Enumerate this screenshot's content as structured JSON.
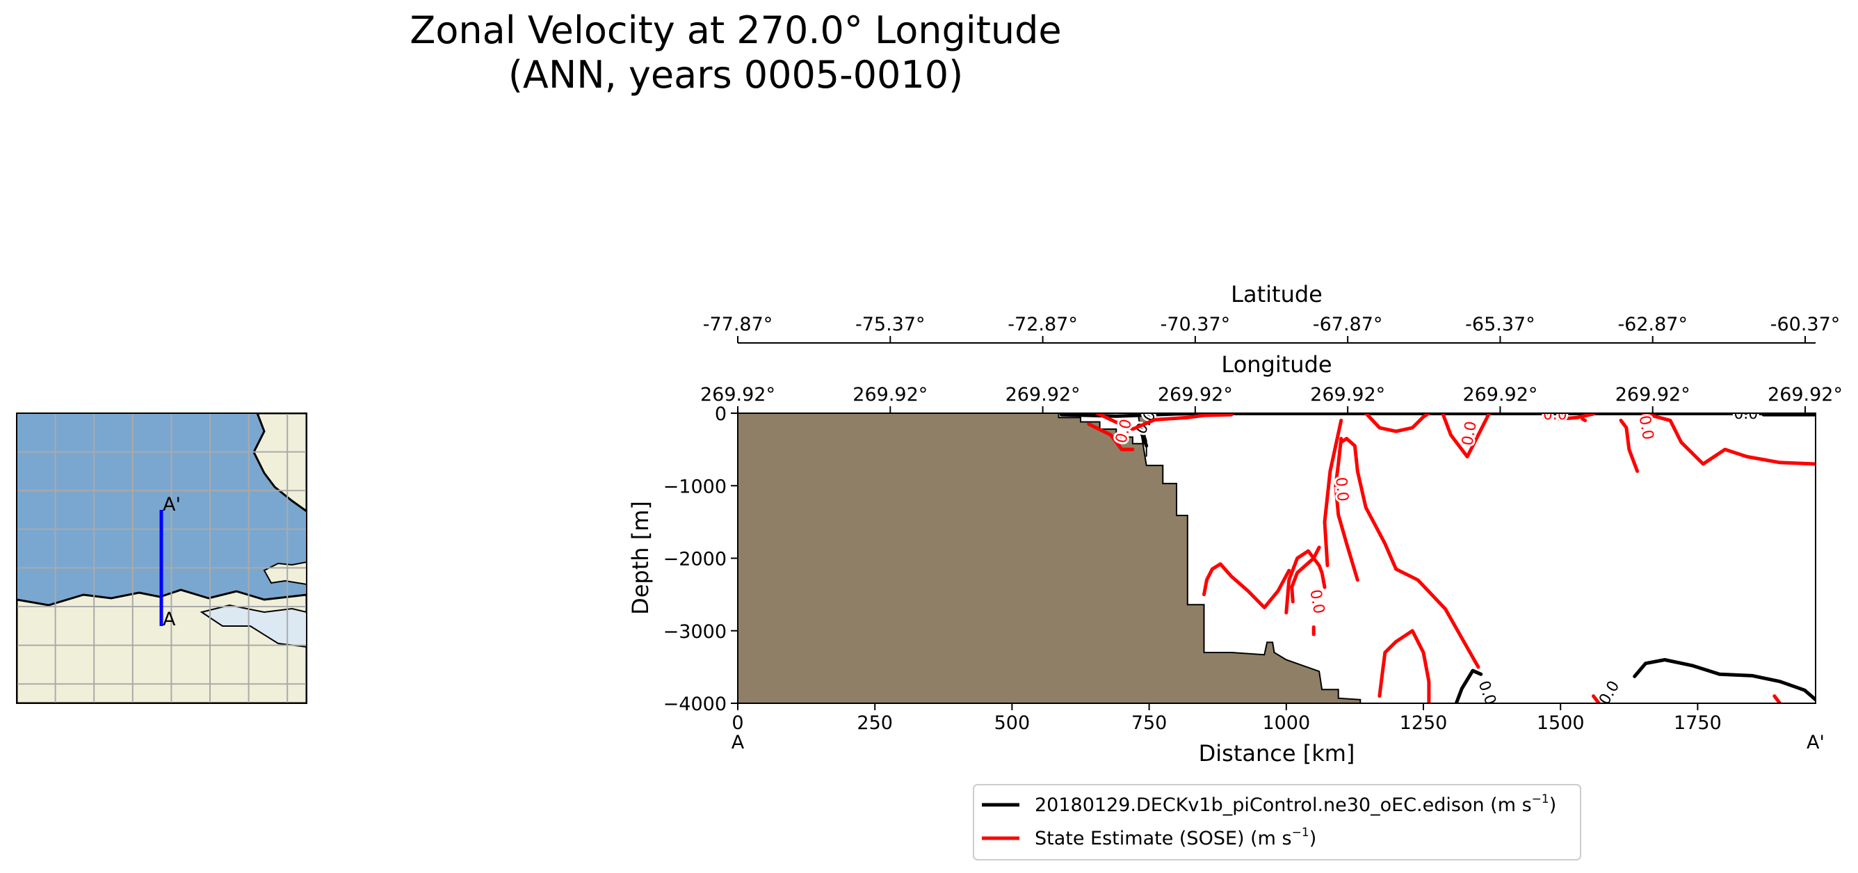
{
  "title": {
    "line1": "Zonal Velocity at 270.0° Longitude",
    "line2": "(ANN, years 0005-0010)"
  },
  "inset_map": {
    "start_label": "A",
    "end_label": "A'"
  },
  "chart_data": {
    "type": "line",
    "title": "Zonal Velocity at 270.0° Longitude (ANN, years 0005-0010)",
    "xlabel": "Distance [km]",
    "ylabel": "Depth [m]",
    "xlim": [
      0,
      1965
    ],
    "ylim": [
      -4000,
      0
    ],
    "xticks": [
      0,
      250,
      500,
      750,
      1000,
      1250,
      1500,
      1750
    ],
    "xtick_labels": [
      "0",
      "250",
      "500",
      "750",
      "1000",
      "1250",
      "1500",
      "1750"
    ],
    "yticks": [
      0,
      -1000,
      -2000,
      -3000,
      -4000
    ],
    "ytick_labels": [
      "0",
      "−1000",
      "−2000",
      "−3000",
      "−4000"
    ],
    "section_start_label": "A",
    "section_end_label": "A'",
    "latitude_axis": {
      "label": "Latitude",
      "ticks_km": [
        0,
        278,
        556,
        834,
        1112,
        1390,
        1668,
        1946
      ],
      "tick_labels": [
        "-77.87°",
        "-75.37°",
        "-72.87°",
        "-70.37°",
        "-67.87°",
        "-65.37°",
        "-62.87°",
        "-60.37°"
      ]
    },
    "longitude_axis": {
      "label": "Longitude",
      "ticks_km": [
        0,
        278,
        556,
        834,
        1112,
        1390,
        1668,
        1946
      ],
      "tick_labels": [
        "269.92°",
        "269.92°",
        "269.92°",
        "269.92°",
        "269.92°",
        "269.92°",
        "269.92°",
        "269.92°"
      ]
    },
    "bathymetry": {
      "color": "#8E7F66",
      "points": [
        [
          0,
          0
        ],
        [
          585,
          0
        ],
        [
          585,
          -60
        ],
        [
          625,
          -60
        ],
        [
          625,
          -120
        ],
        [
          660,
          -120
        ],
        [
          660,
          -220
        ],
        [
          690,
          -220
        ],
        [
          690,
          -330
        ],
        [
          720,
          -330
        ],
        [
          720,
          -420
        ],
        [
          745,
          -420
        ],
        [
          745,
          -600
        ],
        [
          745,
          -600
        ],
        [
          745,
          -380
        ],
        [
          740,
          -250
        ],
        [
          745,
          -130
        ],
        [
          745,
          -40
        ],
        [
          730,
          -20
        ],
        [
          745,
          -720
        ],
        [
          775,
          -720
        ],
        [
          775,
          -970
        ],
        [
          800,
          -970
        ],
        [
          800,
          -1410
        ],
        [
          820,
          -1410
        ],
        [
          820,
          -2640
        ],
        [
          850,
          -2640
        ],
        [
          850,
          -3300
        ],
        [
          900,
          -3300
        ],
        [
          960,
          -3330
        ],
        [
          965,
          -3160
        ],
        [
          975,
          -3160
        ],
        [
          978,
          -3300
        ],
        [
          1000,
          -3400
        ],
        [
          1060,
          -3560
        ],
        [
          1065,
          -3810
        ],
        [
          1095,
          -3810
        ],
        [
          1095,
          -3930
        ],
        [
          1135,
          -3950
        ],
        [
          1135,
          -4000
        ],
        [
          0,
          -4000
        ]
      ]
    },
    "series": [
      {
        "name": "20180129.DECKv1b_piControl.ne30_oEC.edison (m s⁻¹)",
        "color": "#000000",
        "contour_level": "0.0",
        "paths": [
          [
            [
              590,
              -20
            ],
            [
              640,
              -30
            ],
            [
              690,
              -40
            ],
            [
              730,
              -30
            ],
            [
              760,
              -20
            ],
            [
              800,
              -10
            ],
            [
              850,
              -5
            ],
            [
              1965,
              -5
            ]
          ],
          [
            [
              740,
              -150
            ],
            [
              735,
              -250
            ],
            [
              740,
              -350
            ],
            [
              745,
              -450
            ]
          ],
          [
            [
              1310,
              -4000
            ],
            [
              1320,
              -3800
            ],
            [
              1340,
              -3550
            ],
            [
              1355,
              -3600
            ]
          ],
          [
            [
              1635,
              -3630
            ],
            [
              1655,
              -3450
            ],
            [
              1690,
              -3400
            ],
            [
              1740,
              -3480
            ],
            [
              1790,
              -3600
            ],
            [
              1850,
              -3620
            ],
            [
              1900,
              -3700
            ],
            [
              1945,
              -3820
            ],
            [
              1965,
              -3950
            ]
          ],
          [
            [
              1965,
              -20
            ],
            [
              1900,
              -20
            ],
            [
              1870,
              -20
            ]
          ]
        ],
        "labels": [
          {
            "x": 745,
            "y": -130,
            "text": "0.0",
            "rot": -60
          },
          {
            "x": 1365,
            "y": -3860,
            "text": "0.0",
            "rot": 70
          },
          {
            "x": 1590,
            "y": -3860,
            "text": "0.0",
            "rot": -60
          },
          {
            "x": 1838,
            "y": -20,
            "text": "0.0",
            "rot": 0
          }
        ]
      },
      {
        "name": "State Estimate (SOSE) (m s⁻¹)",
        "color": "#FF0000",
        "contour_level": "0.0",
        "paths": [
          [
            [
              640,
              -150
            ],
            [
              680,
              -300
            ],
            [
              700,
              -500
            ],
            [
              720,
              -500
            ]
          ],
          [
            [
              655,
              0
            ],
            [
              700,
              -160
            ],
            [
              720,
              -220
            ],
            [
              760,
              -90
            ],
            [
              820,
              -60
            ],
            [
              850,
              -30
            ],
            [
              900,
              -20
            ]
          ],
          [
            [
              1000,
              -2750
            ],
            [
              1005,
              -2300
            ],
            [
              1020,
              -2000
            ],
            [
              1040,
              -1900
            ],
            [
              1060,
              -2100
            ],
            [
              1065,
              -2200
            ],
            [
              1070,
              -2400
            ]
          ],
          [
            [
              1012,
              -2600
            ],
            [
              1010,
              -2400
            ],
            [
              1020,
              -2200
            ],
            [
              1050,
              -2000
            ],
            [
              1060,
              -1850
            ]
          ],
          [
            [
              1005,
              -2170
            ],
            [
              985,
              -2450
            ],
            [
              960,
              -2680
            ],
            [
              930,
              -2450
            ],
            [
              900,
              -2250
            ],
            [
              880,
              -2080
            ],
            [
              865,
              -2150
            ],
            [
              855,
              -2300
            ],
            [
              850,
              -2500
            ]
          ],
          [
            [
              1100,
              -100
            ],
            [
              1080,
              -800
            ],
            [
              1070,
              -1500
            ],
            [
              1075,
              -2100
            ]
          ],
          [
            [
              1100,
              -350
            ],
            [
              1095,
              -700
            ],
            [
              1090,
              -1000
            ],
            [
              1095,
              -1400
            ],
            [
              1110,
              -1800
            ],
            [
              1130,
              -2300
            ]
          ],
          [
            [
              1100,
              -400
            ],
            [
              1110,
              -350
            ],
            [
              1125,
              -450
            ],
            [
              1130,
              -800
            ],
            [
              1145,
              -1300
            ],
            [
              1180,
              -1800
            ],
            [
              1200,
              -2150
            ],
            [
              1240,
              -2300
            ],
            [
              1290,
              -2700
            ],
            [
              1320,
              -3100
            ],
            [
              1350,
              -3500
            ]
          ],
          [
            [
              1170,
              -3900
            ],
            [
              1175,
              -3600
            ],
            [
              1180,
              -3300
            ],
            [
              1200,
              -3150
            ],
            [
              1230,
              -3000
            ],
            [
              1250,
              -3300
            ],
            [
              1260,
              -3700
            ],
            [
              1260,
              -4000
            ]
          ],
          [
            [
              1050,
              -3050
            ],
            [
              1050,
              -2950
            ]
          ],
          [
            [
              1145,
              0
            ],
            [
              1170,
              -200
            ],
            [
              1200,
              -250
            ],
            [
              1230,
              -200
            ],
            [
              1250,
              -50
            ],
            [
              1260,
              0
            ]
          ],
          [
            [
              1285,
              0
            ],
            [
              1300,
              -300
            ],
            [
              1330,
              -600
            ],
            [
              1350,
              -300
            ],
            [
              1370,
              0
            ]
          ],
          [
            [
              1470,
              -60
            ],
            [
              1500,
              -80
            ],
            [
              1530,
              -60
            ],
            [
              1560,
              -10
            ]
          ],
          [
            [
              1540,
              -80
            ],
            [
              1545,
              -100
            ]
          ],
          [
            [
              1650,
              0
            ],
            [
              1700,
              -100
            ],
            [
              1720,
              -400
            ],
            [
              1760,
              -700
            ],
            [
              1800,
              -500
            ],
            [
              1840,
              -600
            ],
            [
              1900,
              -680
            ],
            [
              1965,
              -700
            ]
          ],
          [
            [
              1610,
              -100
            ],
            [
              1620,
              -200
            ],
            [
              1625,
              -500
            ],
            [
              1640,
              -800
            ]
          ],
          [
            [
              1890,
              -3900
            ],
            [
              1900,
              -4000
            ]
          ],
          [
            [
              1560,
              -3900
            ],
            [
              1570,
              -4000
            ]
          ]
        ],
        "labels": [
          {
            "x": 705,
            "y": -250,
            "text": "0.0",
            "rot": -75
          },
          {
            "x": 1055,
            "y": -2600,
            "text": "0.0",
            "rot": 80
          },
          {
            "x": 1100,
            "y": -1050,
            "text": "0.0",
            "rot": 85
          },
          {
            "x": 1335,
            "y": -280,
            "text": "0.0",
            "rot": -80
          },
          {
            "x": 1490,
            "y": -30,
            "text": "0.0",
            "rot": 0
          },
          {
            "x": 1655,
            "y": -200,
            "text": "0.0",
            "rot": 80
          }
        ]
      }
    ],
    "legend": {
      "position": "bottom",
      "entries": [
        {
          "label": "20180129.DECKv1b_piControl.ne30_oEC.edison (m s",
          "sup": "−1",
          "suffix": ")",
          "color": "#000000"
        },
        {
          "label": "State Estimate (SOSE) (m s",
          "sup": "−1",
          "suffix": ")",
          "color": "#FF0000"
        }
      ]
    }
  }
}
